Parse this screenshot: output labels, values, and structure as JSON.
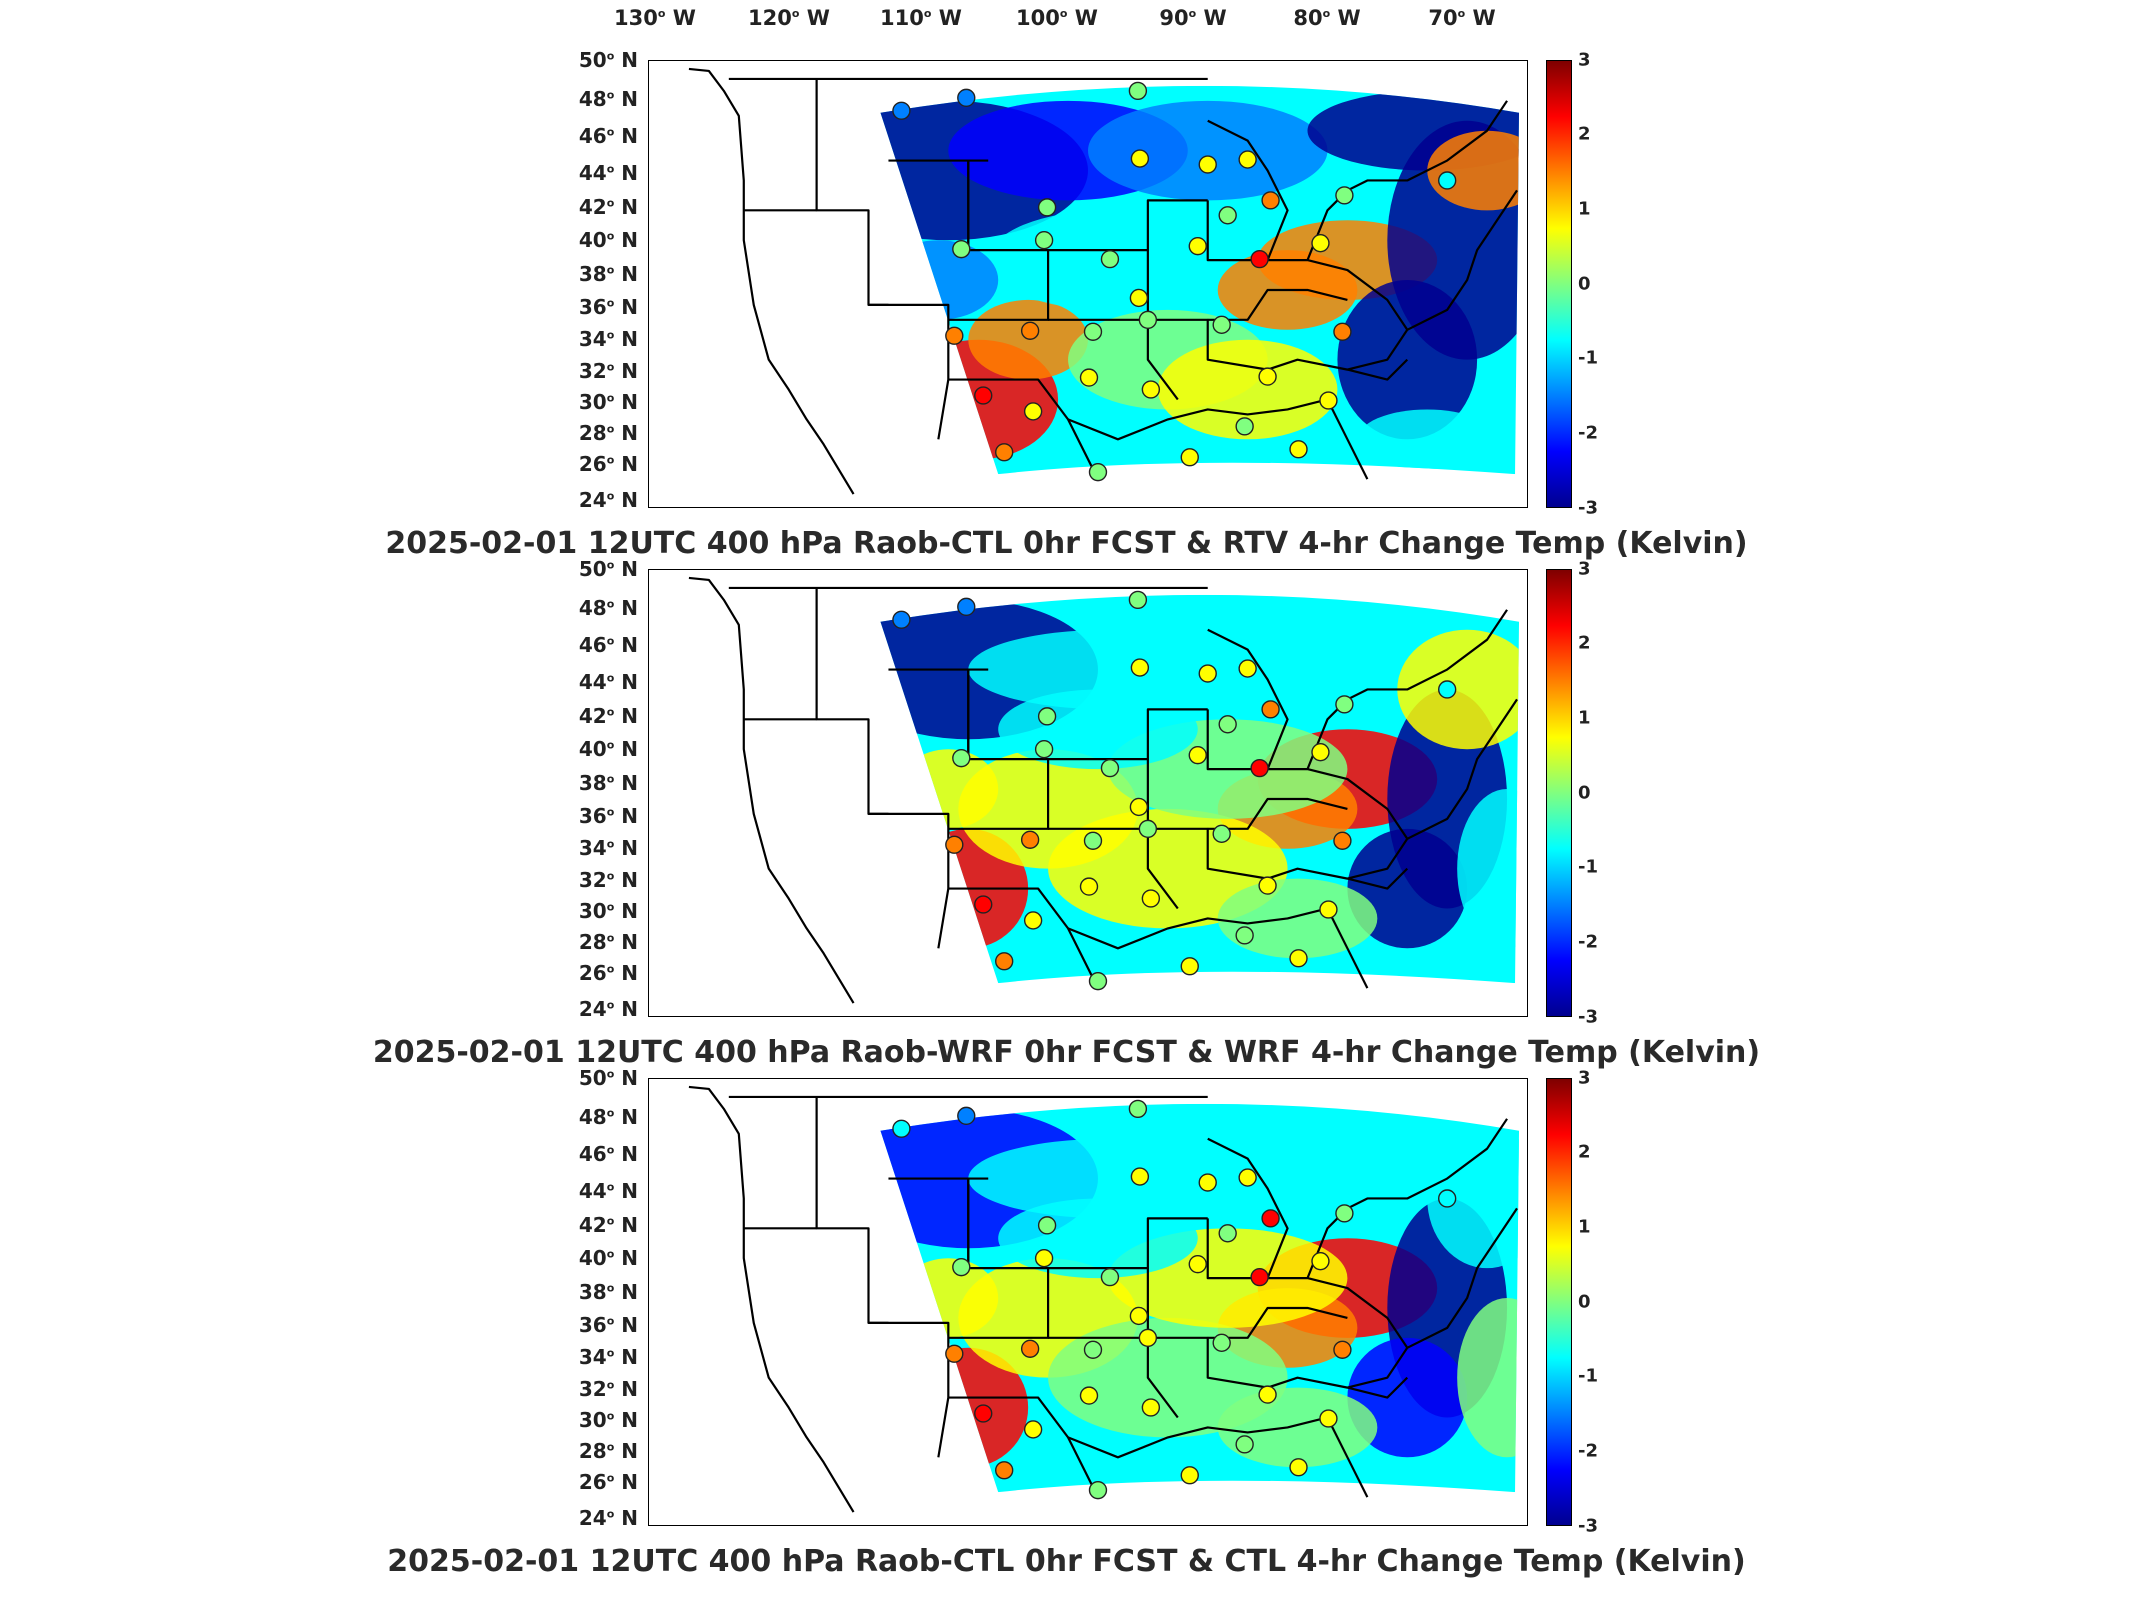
{
  "longitude_labels": [
    {
      "deg": "130",
      "hemi": "W"
    },
    {
      "deg": "120",
      "hemi": "W"
    },
    {
      "deg": "110",
      "hemi": "W"
    },
    {
      "deg": "100",
      "hemi": "W"
    },
    {
      "deg": "90",
      "hemi": "W"
    },
    {
      "deg": "80",
      "hemi": "W"
    },
    {
      "deg": "70",
      "hemi": "W"
    }
  ],
  "latitude_labels": [
    "50",
    "48",
    "46",
    "44",
    "42",
    "40",
    "38",
    "36",
    "34",
    "32",
    "30",
    "28",
    "26",
    "24"
  ],
  "latitude_hemi": "N",
  "colorbar_ticks": [
    "3",
    "2",
    "1",
    "0",
    "-1",
    "-2",
    "-3"
  ],
  "colorbar_colors": [
    "#7f0000",
    "#ff0000",
    "#ff8000",
    "#ffff00",
    "#80ff80",
    "#00ffff",
    "#0080ff",
    "#0000ff",
    "#00008f"
  ],
  "panels": [
    {
      "title": "2025-02-01 12UTC 400 hPa Raob-CTL 0hr FCST & RTV 4-hr Change Temp (Kelvin)"
    },
    {
      "title": "2025-02-01 12UTC 400 hPa Raob-WRF 0hr FCST & WRF 4-hr Change Temp (Kelvin)"
    },
    {
      "title": "2025-02-01 12UTC 400 hPa Raob-CTL 0hr FCST & CTL 4-hr Change Temp (Kelvin)"
    }
  ]
}
